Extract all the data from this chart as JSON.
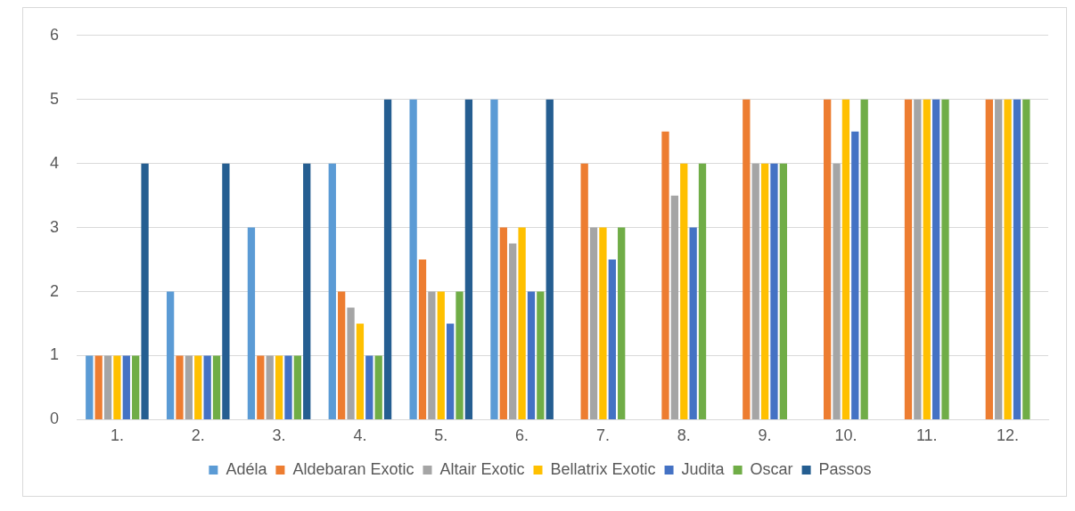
{
  "chart_data": {
    "type": "bar",
    "categories": [
      "1.",
      "2.",
      "3.",
      "4.",
      "5.",
      "6.",
      "7.",
      "8.",
      "9.",
      "10.",
      "11.",
      "12."
    ],
    "series": [
      {
        "name": "Adéla",
        "color": "#5b9bd5",
        "values": [
          1,
          2,
          3,
          4,
          5,
          5,
          null,
          null,
          null,
          null,
          null,
          null
        ]
      },
      {
        "name": "Aldebaran Exotic",
        "color": "#ed7d31",
        "values": [
          1,
          1,
          1,
          2,
          2.5,
          3,
          4,
          4.5,
          5,
          5,
          5,
          5
        ]
      },
      {
        "name": "Altair Exotic",
        "color": "#a5a5a5",
        "values": [
          1,
          1,
          1,
          1.75,
          2,
          2.75,
          3,
          3.5,
          4,
          4,
          5,
          5
        ]
      },
      {
        "name": "Bellatrix Exotic",
        "color": "#ffc000",
        "values": [
          1,
          1,
          1,
          1.5,
          2,
          3,
          3,
          4,
          4,
          5,
          5,
          5
        ]
      },
      {
        "name": "Judita",
        "color": "#4472c4",
        "values": [
          1,
          1,
          1,
          1,
          1.5,
          2,
          2.5,
          3,
          4,
          4.5,
          5,
          5
        ]
      },
      {
        "name": "Oscar",
        "color": "#70ad47",
        "values": [
          1,
          1,
          1,
          1,
          2,
          2,
          3,
          4,
          4,
          5,
          5,
          5
        ]
      },
      {
        "name": "Passos",
        "color": "#255e91",
        "values": [
          4,
          4,
          4,
          5,
          5,
          5,
          null,
          null,
          null,
          null,
          null,
          null
        ]
      }
    ],
    "ylim": [
      0,
      6
    ],
    "yticks": [
      0,
      1,
      2,
      3,
      4,
      5,
      6
    ],
    "grid": "y",
    "legend": "bottom"
  }
}
